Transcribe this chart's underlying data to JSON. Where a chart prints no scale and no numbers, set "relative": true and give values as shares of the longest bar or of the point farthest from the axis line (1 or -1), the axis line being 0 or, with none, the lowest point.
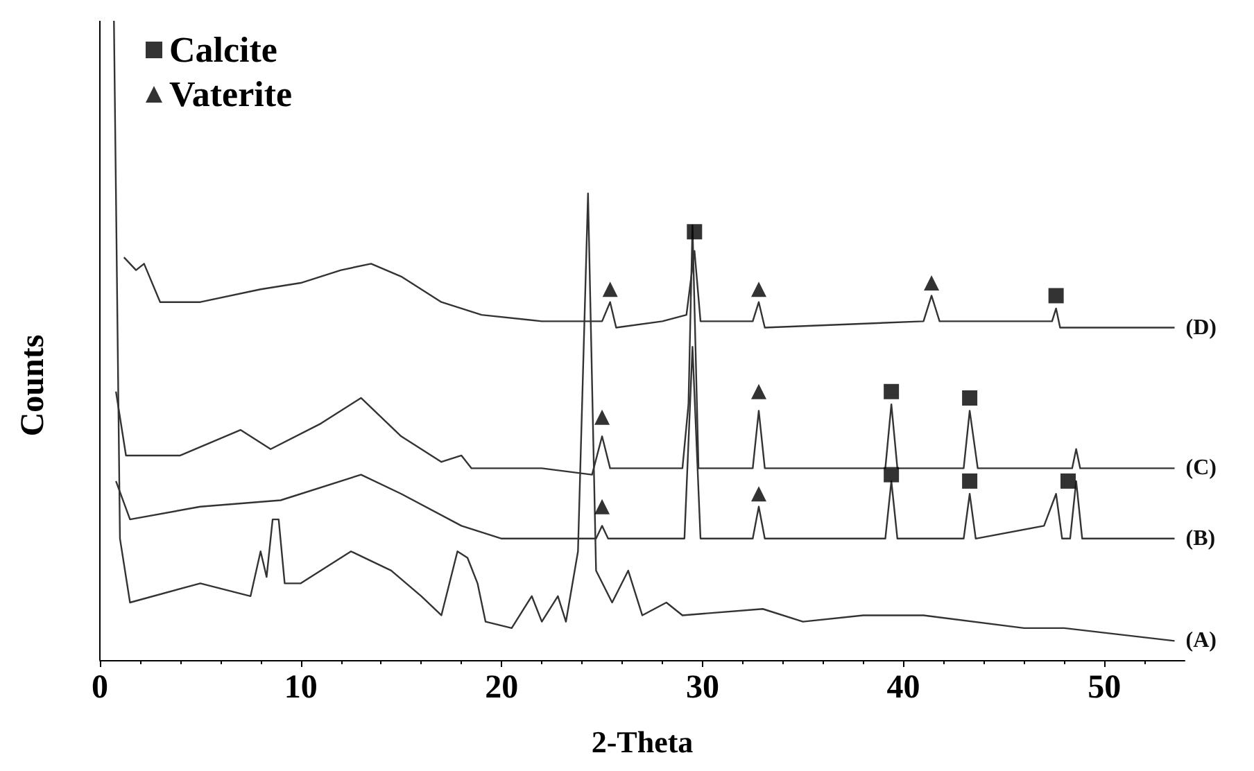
{
  "chart_data": {
    "type": "line",
    "relative": true,
    "xlabel": "2-Theta",
    "ylabel": "Counts",
    "xlim": [
      0,
      54
    ],
    "xticks": [
      0,
      10,
      20,
      30,
      40,
      50
    ],
    "grid": false,
    "legend": "top left",
    "marker": "none",
    "series": [
      {
        "name": "(A)",
        "color": "#333333",
        "x": [
          0.7,
          1.0,
          1.5,
          5,
          7.5,
          8,
          8.3,
          8.6,
          8.9,
          9.2,
          10,
          12.5,
          14.5,
          16,
          17,
          17.8,
          18.3,
          18.8,
          19.2,
          20.5,
          21.5,
          22,
          22.8,
          23.2,
          23.8,
          24.3,
          24.7,
          25.5,
          26.3,
          27,
          28.2,
          29,
          33,
          35,
          38,
          41,
          46,
          48,
          53.5
        ],
        "values": [
          1,
          0.19,
          0.09,
          0.12,
          0.1,
          0.17,
          0.13,
          0.22,
          0.22,
          0.12,
          0.12,
          0.17,
          0.14,
          0.1,
          0.07,
          0.17,
          0.16,
          0.12,
          0.06,
          0.05,
          0.1,
          0.06,
          0.1,
          0.06,
          0.17,
          0.73,
          0.14,
          0.09,
          0.14,
          0.07,
          0.09,
          0.07,
          0.08,
          0.06,
          0.07,
          0.07,
          0.05,
          0.05,
          0.03
        ]
      },
      {
        "name": "(B)",
        "color": "#333333",
        "x": [
          0.8,
          1.5,
          5,
          9,
          13,
          15,
          18,
          20,
          24.7,
          25,
          25.3,
          29.1,
          29.5,
          29.9,
          32.5,
          32.8,
          33.1,
          39.1,
          39.4,
          39.7,
          43,
          43.3,
          43.6,
          47,
          47.6,
          47.9,
          48.3,
          48.6,
          48.9,
          53.5
        ],
        "values": [
          0.28,
          0.22,
          0.24,
          0.25,
          0.29,
          0.26,
          0.21,
          0.19,
          0.19,
          0.21,
          0.19,
          0.19,
          0.49,
          0.19,
          0.19,
          0.24,
          0.19,
          0.19,
          0.28,
          0.19,
          0.19,
          0.26,
          0.19,
          0.21,
          0.26,
          0.19,
          0.19,
          0.28,
          0.19,
          0.19
        ]
      },
      {
        "name": "(C)",
        "color": "#333333",
        "x": [
          0.8,
          1.3,
          4,
          7,
          8.5,
          11,
          13,
          15,
          17,
          18,
          18.5,
          22,
          24.5,
          25,
          25.4,
          29,
          29.3,
          29.5,
          29.8,
          32.5,
          32.8,
          33.1,
          39.1,
          39.4,
          39.7,
          43,
          43.3,
          43.7,
          48.4,
          48.6,
          48.8,
          53.5
        ],
        "values": [
          0.42,
          0.32,
          0.32,
          0.36,
          0.33,
          0.37,
          0.41,
          0.35,
          0.31,
          0.32,
          0.3,
          0.3,
          0.29,
          0.35,
          0.3,
          0.3,
          0.4,
          0.68,
          0.3,
          0.3,
          0.39,
          0.3,
          0.3,
          0.4,
          0.3,
          0.3,
          0.39,
          0.3,
          0.3,
          0.33,
          0.3,
          0.3
        ]
      },
      {
        "name": "(D)",
        "color": "#333333",
        "x": [
          1.2,
          1.8,
          2.2,
          3,
          5,
          8,
          10,
          12,
          13.5,
          15,
          17,
          19,
          22,
          25,
          25.4,
          25.7,
          28,
          29.2,
          29.6,
          29.9,
          32.5,
          32.8,
          33.1,
          41,
          41.4,
          41.8,
          47.4,
          47.6,
          47.8,
          53.5
        ],
        "values": [
          0.63,
          0.61,
          0.62,
          0.56,
          0.56,
          0.58,
          0.59,
          0.61,
          0.62,
          0.6,
          0.56,
          0.54,
          0.53,
          0.53,
          0.56,
          0.52,
          0.53,
          0.54,
          0.64,
          0.53,
          0.53,
          0.56,
          0.52,
          0.53,
          0.57,
          0.53,
          0.53,
          0.55,
          0.52,
          0.52
        ]
      },
      {
        "name": "Calcite",
        "type": "scatter",
        "marker": "square",
        "color": "#000000",
        "x": [
          29.6,
          47.6,
          39.4,
          43.3,
          39.4,
          43.3,
          48.2
        ],
        "values": [
          0.67,
          0.57,
          0.42,
          0.41,
          0.29,
          0.28,
          0.28
        ]
      },
      {
        "name": "Vaterite",
        "type": "scatter",
        "marker": "triangle",
        "color": "#000000",
        "x": [
          25.4,
          32.8,
          41.4,
          25,
          32.8,
          25,
          32.8
        ],
        "values": [
          0.58,
          0.58,
          0.59,
          0.38,
          0.42,
          0.24,
          0.26
        ]
      }
    ]
  }
}
